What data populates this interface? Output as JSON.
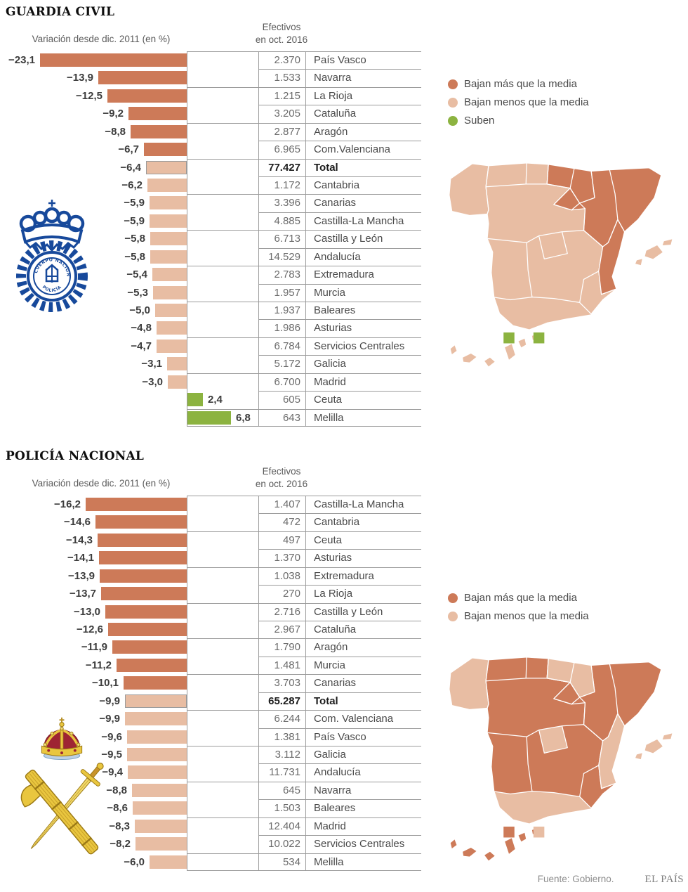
{
  "colors": {
    "more": "#cd7a58",
    "less": "#e8bda3",
    "up": "#8cb340",
    "total_border": "#9b9b9b"
  },
  "footer": {
    "source": "Fuente: Gobierno.",
    "brand": "EL PAÍS"
  },
  "chart_data": [
    {
      "type": "bar",
      "title": "GUARDIA CIVIL",
      "axis_label": "Variación desde dic. 2011 (en %)",
      "value_header": [
        "Efectivos",
        "en oct. 2016"
      ],
      "unit": "% variación",
      "xlim": [
        -25,
        8
      ],
      "legend": [
        {
          "label": "Bajan más que la media",
          "category": "more"
        },
        {
          "label": "Bajan menos que la media",
          "category": "less"
        },
        {
          "label": "Suben",
          "category": "up"
        }
      ],
      "rows": [
        {
          "region": "País Vasco",
          "variation": -23.1,
          "label": "−23,1",
          "personnel": "2.370",
          "category": "more"
        },
        {
          "region": "Navarra",
          "variation": -13.9,
          "label": "−13,9",
          "personnel": "1.533",
          "category": "more"
        },
        {
          "region": "La Rioja",
          "variation": -12.5,
          "label": "−12,5",
          "personnel": "1.215",
          "category": "more"
        },
        {
          "region": "Cataluña",
          "variation": -9.2,
          "label": "−9,2",
          "personnel": "3.205",
          "category": "more"
        },
        {
          "region": "Aragón",
          "variation": -8.8,
          "label": "−8,8",
          "personnel": "2.877",
          "category": "more"
        },
        {
          "region": "Com.Valenciana",
          "variation": -6.7,
          "label": "−6,7",
          "personnel": "6.965",
          "category": "more"
        },
        {
          "region": "Total",
          "variation": -6.4,
          "label": "−6,4",
          "personnel": "77.427",
          "category": "total"
        },
        {
          "region": "Cantabria",
          "variation": -6.2,
          "label": "−6,2",
          "personnel": "1.172",
          "category": "less"
        },
        {
          "region": "Canarias",
          "variation": -5.9,
          "label": "−5,9",
          "personnel": "3.396",
          "category": "less"
        },
        {
          "region": "Castilla-La Mancha",
          "variation": -5.9,
          "label": "−5,9",
          "personnel": "4.885",
          "category": "less"
        },
        {
          "region": "Castilla y León",
          "variation": -5.8,
          "label": "−5,8",
          "personnel": "6.713",
          "category": "less"
        },
        {
          "region": "Andalucía",
          "variation": -5.8,
          "label": "−5,8",
          "personnel": "14.529",
          "category": "less"
        },
        {
          "region": "Extremadura",
          "variation": -5.4,
          "label": "−5,4",
          "personnel": "2.783",
          "category": "less"
        },
        {
          "region": "Murcia",
          "variation": -5.3,
          "label": "−5,3",
          "personnel": "1.957",
          "category": "less"
        },
        {
          "region": "Baleares",
          "variation": -5.0,
          "label": "−5,0",
          "personnel": "1.937",
          "category": "less"
        },
        {
          "region": "Asturias",
          "variation": -4.8,
          "label": "−4,8",
          "personnel": "1.986",
          "category": "less"
        },
        {
          "region": "Servicios Centrales",
          "variation": -4.7,
          "label": "−4,7",
          "personnel": "6.784",
          "category": "less"
        },
        {
          "region": "Galicia",
          "variation": -3.1,
          "label": "−3,1",
          "personnel": "5.172",
          "category": "less"
        },
        {
          "region": "Madrid",
          "variation": -3.0,
          "label": "−3,0",
          "personnel": "6.700",
          "category": "less"
        },
        {
          "region": "Ceuta",
          "variation": 2.4,
          "label": "2,4",
          "personnel": "605",
          "category": "up"
        },
        {
          "region": "Melilla",
          "variation": 6.8,
          "label": "6,8",
          "personnel": "643",
          "category": "up"
        }
      ],
      "map_categories": {
        "Galicia": "less",
        "Asturias": "less",
        "Cantabria": "less",
        "País Vasco": "more",
        "Navarra": "more",
        "La Rioja": "more",
        "Aragón": "more",
        "Cataluña": "more",
        "Castilla y León": "less",
        "Madrid": "less",
        "Castilla-La Mancha": "less",
        "Com. Valenciana": "more",
        "Murcia": "less",
        "Extremadura": "less",
        "Andalucía": "less",
        "Baleares": "less",
        "Canarias": "less",
        "Ceuta": "up",
        "Melilla": "up"
      },
      "emblem": "cuerpo-nacional-de-policia-badge"
    },
    {
      "type": "bar",
      "title": "POLICÍA NACIONAL",
      "axis_label": "Variación desde dic. 2011 (en %)",
      "value_header": [
        "Efectivos",
        "en oct. 2016"
      ],
      "unit": "% variación",
      "xlim": [
        -18,
        0
      ],
      "legend": [
        {
          "label": "Bajan más que la media",
          "category": "more"
        },
        {
          "label": "Bajan menos que la media",
          "category": "less"
        }
      ],
      "rows": [
        {
          "region": "Castilla-La Mancha",
          "variation": -16.2,
          "label": "−16,2",
          "personnel": "1.407",
          "category": "more"
        },
        {
          "region": "Cantabria",
          "variation": -14.6,
          "label": "−14,6",
          "personnel": "472",
          "category": "more"
        },
        {
          "region": "Ceuta",
          "variation": -14.3,
          "label": "−14,3",
          "personnel": "497",
          "category": "more"
        },
        {
          "region": "Asturias",
          "variation": -14.1,
          "label": "−14,1",
          "personnel": "1.370",
          "category": "more"
        },
        {
          "region": "Extremadura",
          "variation": -13.9,
          "label": "−13,9",
          "personnel": "1.038",
          "category": "more"
        },
        {
          "region": "La Rioja",
          "variation": -13.7,
          "label": "−13,7",
          "personnel": "270",
          "category": "more"
        },
        {
          "region": "Castilla y León",
          "variation": -13.0,
          "label": "−13,0",
          "personnel": "2.716",
          "category": "more"
        },
        {
          "region": "Cataluña",
          "variation": -12.6,
          "label": "−12,6",
          "personnel": "2.967",
          "category": "more"
        },
        {
          "region": "Aragón",
          "variation": -11.9,
          "label": "−11,9",
          "personnel": "1.790",
          "category": "more"
        },
        {
          "region": "Murcia",
          "variation": -11.2,
          "label": "−11,2",
          "personnel": "1.481",
          "category": "more"
        },
        {
          "region": "Canarias",
          "variation": -10.1,
          "label": "−10,1",
          "personnel": "3.703",
          "category": "more"
        },
        {
          "region": "Total",
          "variation": -9.9,
          "label": "−9,9",
          "personnel": "65.287",
          "category": "total"
        },
        {
          "region": "Com. Valenciana",
          "variation": -9.9,
          "label": "−9,9",
          "personnel": "6.244",
          "category": "less"
        },
        {
          "region": "País Vasco",
          "variation": -9.6,
          "label": "−9,6",
          "personnel": "1.381",
          "category": "less"
        },
        {
          "region": "Galicia",
          "variation": -9.5,
          "label": "−9,5",
          "personnel": "3.112",
          "category": "less"
        },
        {
          "region": "Andalucía",
          "variation": -9.4,
          "label": "−9,4",
          "personnel": "11.731",
          "category": "less"
        },
        {
          "region": "Navarra",
          "variation": -8.8,
          "label": "−8,8",
          "personnel": "645",
          "category": "less"
        },
        {
          "region": "Baleares",
          "variation": -8.6,
          "label": "−8,6",
          "personnel": "1.503",
          "category": "less"
        },
        {
          "region": "Madrid",
          "variation": -8.3,
          "label": "−8,3",
          "personnel": "12.404",
          "category": "less"
        },
        {
          "region": "Servicios Centrales",
          "variation": -8.2,
          "label": "−8,2",
          "personnel": "10.022",
          "category": "less"
        },
        {
          "region": "Melilla",
          "variation": -6.0,
          "label": "−6,0",
          "personnel": "534",
          "category": "less"
        }
      ],
      "map_categories": {
        "Galicia": "less",
        "Asturias": "more",
        "Cantabria": "more",
        "País Vasco": "less",
        "Navarra": "less",
        "La Rioja": "more",
        "Aragón": "more",
        "Cataluña": "more",
        "Castilla y León": "more",
        "Madrid": "less",
        "Castilla-La Mancha": "more",
        "Com. Valenciana": "less",
        "Murcia": "more",
        "Extremadura": "more",
        "Andalucía": "less",
        "Baleares": "less",
        "Canarias": "more",
        "Ceuta": "more",
        "Melilla": "less"
      },
      "emblem": "guardia-civil-emblem"
    }
  ]
}
